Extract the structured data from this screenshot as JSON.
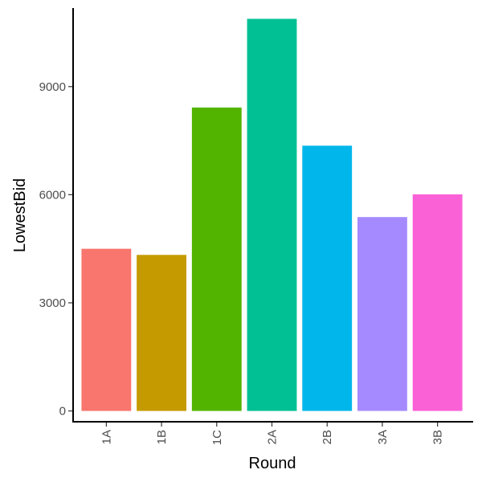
{
  "chart_data": {
    "type": "bar",
    "categories": [
      "1A",
      "1B",
      "1C",
      "2A",
      "2B",
      "3A",
      "3B"
    ],
    "values": [
      4500,
      4330,
      8420,
      10880,
      7360,
      5380,
      6010
    ],
    "colors": [
      "#F8766D",
      "#C49A00",
      "#53B400",
      "#00C094",
      "#00B6EB",
      "#A58AFF",
      "#FB61D7"
    ],
    "xlabel": "Round",
    "ylabel": "LowestBid",
    "ylim": [
      -300,
      11180
    ],
    "yticks": [
      0,
      3000,
      6000,
      9000
    ],
    "ytick_labels": [
      "0",
      "3000",
      "6000",
      "9000"
    ],
    "grid": false,
    "legend": "none"
  }
}
